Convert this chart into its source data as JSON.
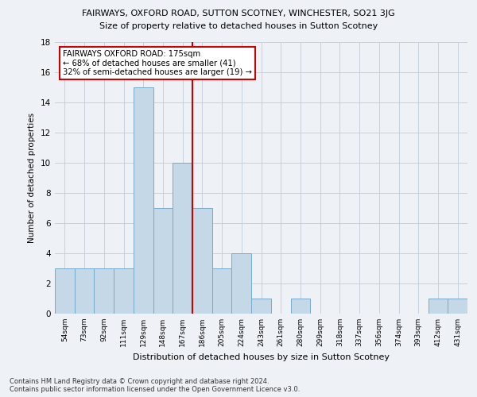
{
  "title_line1": "FAIRWAYS, OXFORD ROAD, SUTTON SCOTNEY, WINCHESTER, SO21 3JG",
  "title_line2": "Size of property relative to detached houses in Sutton Scotney",
  "xlabel": "Distribution of detached houses by size in Sutton Scotney",
  "ylabel": "Number of detached properties",
  "footnote": "Contains HM Land Registry data © Crown copyright and database right 2024.\nContains public sector information licensed under the Open Government Licence v3.0.",
  "bin_labels": [
    "54sqm",
    "73sqm",
    "92sqm",
    "111sqm",
    "129sqm",
    "148sqm",
    "167sqm",
    "186sqm",
    "205sqm",
    "224sqm",
    "243sqm",
    "261sqm",
    "280sqm",
    "299sqm",
    "318sqm",
    "337sqm",
    "356sqm",
    "374sqm",
    "393sqm",
    "412sqm",
    "431sqm"
  ],
  "bar_values": [
    3,
    3,
    3,
    3,
    15,
    7,
    10,
    7,
    3,
    4,
    1,
    0,
    1,
    0,
    0,
    0,
    0,
    0,
    0,
    1,
    1
  ],
  "bar_color": "#c5d8e8",
  "bar_edge_color": "#7aaac8",
  "ylim": [
    0,
    18
  ],
  "yticks": [
    0,
    2,
    4,
    6,
    8,
    10,
    12,
    14,
    16,
    18
  ],
  "vline_x_index": 6.5,
  "annotation_text": "FAIRWAYS OXFORD ROAD: 175sqm\n← 68% of detached houses are smaller (41)\n32% of semi-detached houses are larger (19) →",
  "annotation_box_color": "#ffffff",
  "annotation_box_edge_color": "#cc0000",
  "vline_color": "#cc0000",
  "background_color": "#eef2f7",
  "plot_bg_color": "#eef2f7",
  "grid_color": "#c8d0dc"
}
